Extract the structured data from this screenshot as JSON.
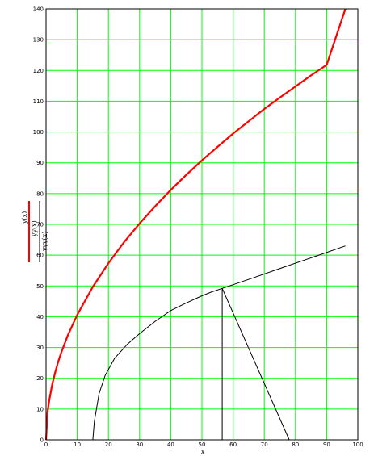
{
  "chart_data": {
    "type": "line",
    "xlabel": "x",
    "xlim": [
      0,
      100
    ],
    "ylim": [
      0,
      140
    ],
    "x_ticks": [
      0,
      10,
      20,
      30,
      40,
      50,
      60,
      70,
      80,
      90,
      100
    ],
    "y_ticks": [
      0,
      10,
      20,
      30,
      40,
      50,
      60,
      70,
      80,
      90,
      100,
      110,
      120,
      130,
      140
    ],
    "grid": true,
    "grid_color": "#00ff00",
    "legend_position": "left",
    "series": [
      {
        "name": "y(x)",
        "color": "#ff0000",
        "points": [
          [
            0,
            0
          ],
          [
            0.5,
            9.1
          ],
          [
            1,
            12.8
          ],
          [
            2,
            18.1
          ],
          [
            3,
            22.2
          ],
          [
            4,
            25.7
          ],
          [
            5,
            28.7
          ],
          [
            7,
            34.0
          ],
          [
            10,
            40.6
          ],
          [
            15,
            49.7
          ],
          [
            20,
            57.4
          ],
          [
            25,
            64.2
          ],
          [
            30,
            70.3
          ],
          [
            35,
            75.9
          ],
          [
            40,
            81.2
          ],
          [
            45,
            86.1
          ],
          [
            50,
            90.8
          ],
          [
            55,
            95.2
          ],
          [
            60,
            99.5
          ],
          [
            65,
            103.5
          ],
          [
            70,
            107.5
          ],
          [
            75,
            111.2
          ],
          [
            80,
            114.8
          ],
          [
            85,
            118.4
          ],
          [
            90,
            121.8
          ],
          [
            96,
            140
          ]
        ]
      },
      {
        "name": "yy(x)",
        "color": "#000000",
        "points": [
          [
            15,
            0
          ],
          [
            15.5,
            6
          ],
          [
            17,
            15
          ],
          [
            19,
            21
          ],
          [
            22,
            26.5
          ],
          [
            26,
            31
          ],
          [
            30,
            34.5
          ],
          [
            35,
            38.5
          ],
          [
            40,
            42
          ],
          [
            45,
            44.5
          ],
          [
            50,
            46.8
          ],
          [
            53,
            48
          ],
          [
            56.5,
            49.2
          ],
          [
            66,
            52.5
          ],
          [
            76,
            56
          ],
          [
            86,
            59.5
          ],
          [
            96,
            63
          ]
        ]
      },
      {
        "name": "yyy(x)",
        "color": "#000000",
        "points": [
          [
            56.5,
            0
          ],
          [
            56.5,
            49.2
          ],
          [
            78,
            0
          ]
        ]
      }
    ]
  }
}
